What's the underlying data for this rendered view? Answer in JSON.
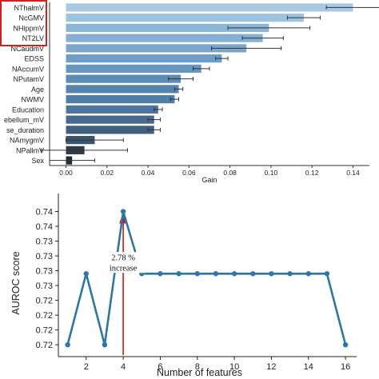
{
  "chart_data": [
    {
      "type": "bar",
      "orientation": "horizontal",
      "categories": [
        "NThalmV",
        "NcGMV",
        "NHippmV",
        "NT2LV",
        "NCaudmV",
        "EDSS",
        "NAccumV",
        "NPutamV",
        "Age",
        "NWMV",
        "Education",
        "NCerebellum_mV",
        "Disease_duration",
        "NAmygmV",
        "NPallmV",
        "Sex"
      ],
      "category_labels_shown": [
        "NThalmV",
        "NcGMV",
        "NHippmV",
        "NT2LV",
        "NCaudmV",
        "EDSS",
        "NAccumV",
        "NPutamV",
        "Age",
        "NWMV",
        "Education",
        "ebellum_mV",
        "se_duration",
        "NAmygmV",
        "NPallmV",
        "Sex"
      ],
      "values": [
        0.14,
        0.116,
        0.099,
        0.096,
        0.088,
        0.076,
        0.066,
        0.056,
        0.055,
        0.053,
        0.045,
        0.043,
        0.043,
        0.014,
        0.009,
        0.003
      ],
      "errors": [
        0.013,
        0.008,
        0.02,
        0.01,
        0.017,
        0.003,
        0.004,
        0.006,
        0.002,
        0.002,
        0.002,
        0.003,
        0.003,
        0.014,
        0.021,
        0.011
      ],
      "colors": [
        "#a9c9e2",
        "#9ec3de",
        "#8cb6d7",
        "#86b0d3",
        "#7ba6cc",
        "#6e9dc6",
        "#6496c0",
        "#5a8cb6",
        "#5584ad",
        "#4f7ea8",
        "#4c76a0",
        "#45698f",
        "#3f607f",
        "#3a566f",
        "#2e3a46",
        "#232c35"
      ],
      "highlighted_labels": [
        "NThalmV",
        "NcGMV",
        "NHippmV",
        "NT2LV"
      ],
      "highlight_color": "#d02020",
      "xlabel": "Gain",
      "xlim": [
        -0.008,
        0.148
      ],
      "xticks": [
        0.0,
        0.02,
        0.04,
        0.06,
        0.08,
        0.1,
        0.12,
        0.14
      ],
      "xtick_labels": [
        "0.00",
        "0.02",
        "0.04",
        "0.06",
        "0.08",
        "0.10",
        "0.12",
        "0.14"
      ],
      "grid": false
    },
    {
      "type": "line",
      "x": [
        1,
        2,
        3,
        4,
        5,
        6,
        7,
        8,
        9,
        10,
        11,
        12,
        13,
        14,
        15,
        16
      ],
      "y": [
        0.72,
        0.73,
        0.72,
        0.74,
        0.73,
        0.73,
        0.73,
        0.73,
        0.73,
        0.73,
        0.73,
        0.73,
        0.73,
        0.73,
        0.73,
        0.72
      ],
      "y_draw": [
        0.7175,
        0.7295,
        0.7175,
        0.74,
        0.7295,
        0.7295,
        0.7295,
        0.7295,
        0.7295,
        0.7295,
        0.7295,
        0.7295,
        0.7295,
        0.7295,
        0.7295,
        0.7175
      ],
      "xlabel": "Number of features",
      "ylabel": "AUROC score",
      "xlim": [
        0.5,
        16.6
      ],
      "ylim": [
        0.7155,
        0.7425
      ],
      "xticks": [
        2,
        4,
        6,
        8,
        10,
        12,
        14,
        16
      ],
      "yticks": [
        0.7175,
        0.72,
        0.7225,
        0.725,
        0.7275,
        0.73,
        0.7325,
        0.735,
        0.7375,
        0.74
      ],
      "ytick_labels": [
        "0.72",
        "0.72",
        "0.72",
        "0.72",
        "0.73",
        "0.73",
        "0.73",
        "0.73",
        "0.74",
        "0.74"
      ],
      "line_color": "#2a77a8",
      "arrow_color": "#d01818",
      "annotation": {
        "x": 4,
        "text_line1": "2.78 %",
        "text_line2": "increase"
      },
      "grid": false
    }
  ]
}
